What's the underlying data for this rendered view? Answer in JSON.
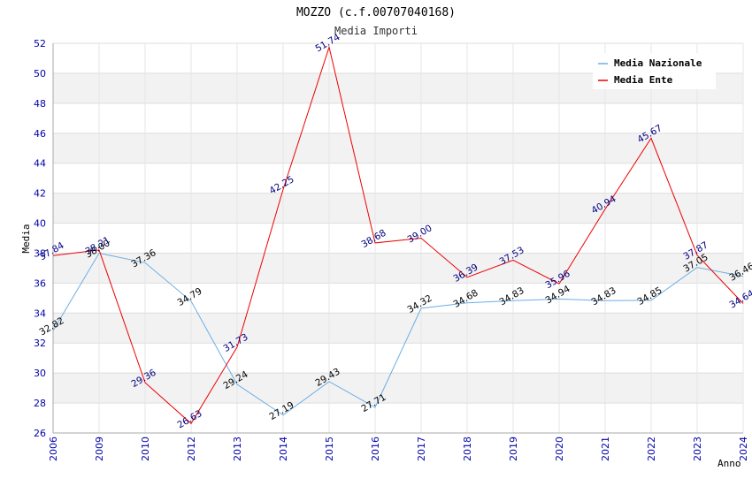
{
  "chart_data": {
    "type": "line",
    "title": "MOZZO (c.f.00707040168)",
    "subtitle": "Media Importi",
    "xlabel": "Anno",
    "ylabel": "Media",
    "ylim": [
      26,
      52
    ],
    "yticks": [
      26,
      28,
      30,
      32,
      34,
      36,
      38,
      40,
      42,
      44,
      46,
      48,
      50,
      52
    ],
    "grid": true,
    "legend_position": "top-right",
    "categories": [
      "2006",
      "2009",
      "2010",
      "2012",
      "2013",
      "2014",
      "2015",
      "2016",
      "2017",
      "2018",
      "2019",
      "2020",
      "2021",
      "2022",
      "2023",
      "2024"
    ],
    "series": [
      {
        "name": "Media Nazionale",
        "color": "#6aaee6",
        "label_color": "#000000",
        "values": [
          32.82,
          38.0,
          37.36,
          34.79,
          29.24,
          27.19,
          29.43,
          27.71,
          34.32,
          34.68,
          34.83,
          34.94,
          34.83,
          34.85,
          37.05,
          36.46
        ],
        "labels": [
          "32.82",
          "38.00",
          "37.36",
          "34.79",
          "29.24",
          "27.19",
          "29.43",
          "27.71",
          "34.32",
          "34.68",
          "34.83",
          "34.94",
          "34.83",
          "34.85",
          "37.05",
          "36.46"
        ]
      },
      {
        "name": "Media Ente",
        "color": "#ee0000",
        "label_color": "#000080",
        "values": [
          37.84,
          38.21,
          29.36,
          26.63,
          31.73,
          42.25,
          51.74,
          38.68,
          39.0,
          36.39,
          37.53,
          35.96,
          40.94,
          45.67,
          37.87,
          34.64
        ],
        "labels": [
          "37.84",
          "38.21",
          "29.36",
          "26.63",
          "31.73",
          "42.25",
          "51.74",
          "38.68",
          "39.00",
          "36.39",
          "37.53",
          "35.96",
          "40.94",
          "45.67",
          "37.87",
          "34.64"
        ]
      }
    ]
  }
}
